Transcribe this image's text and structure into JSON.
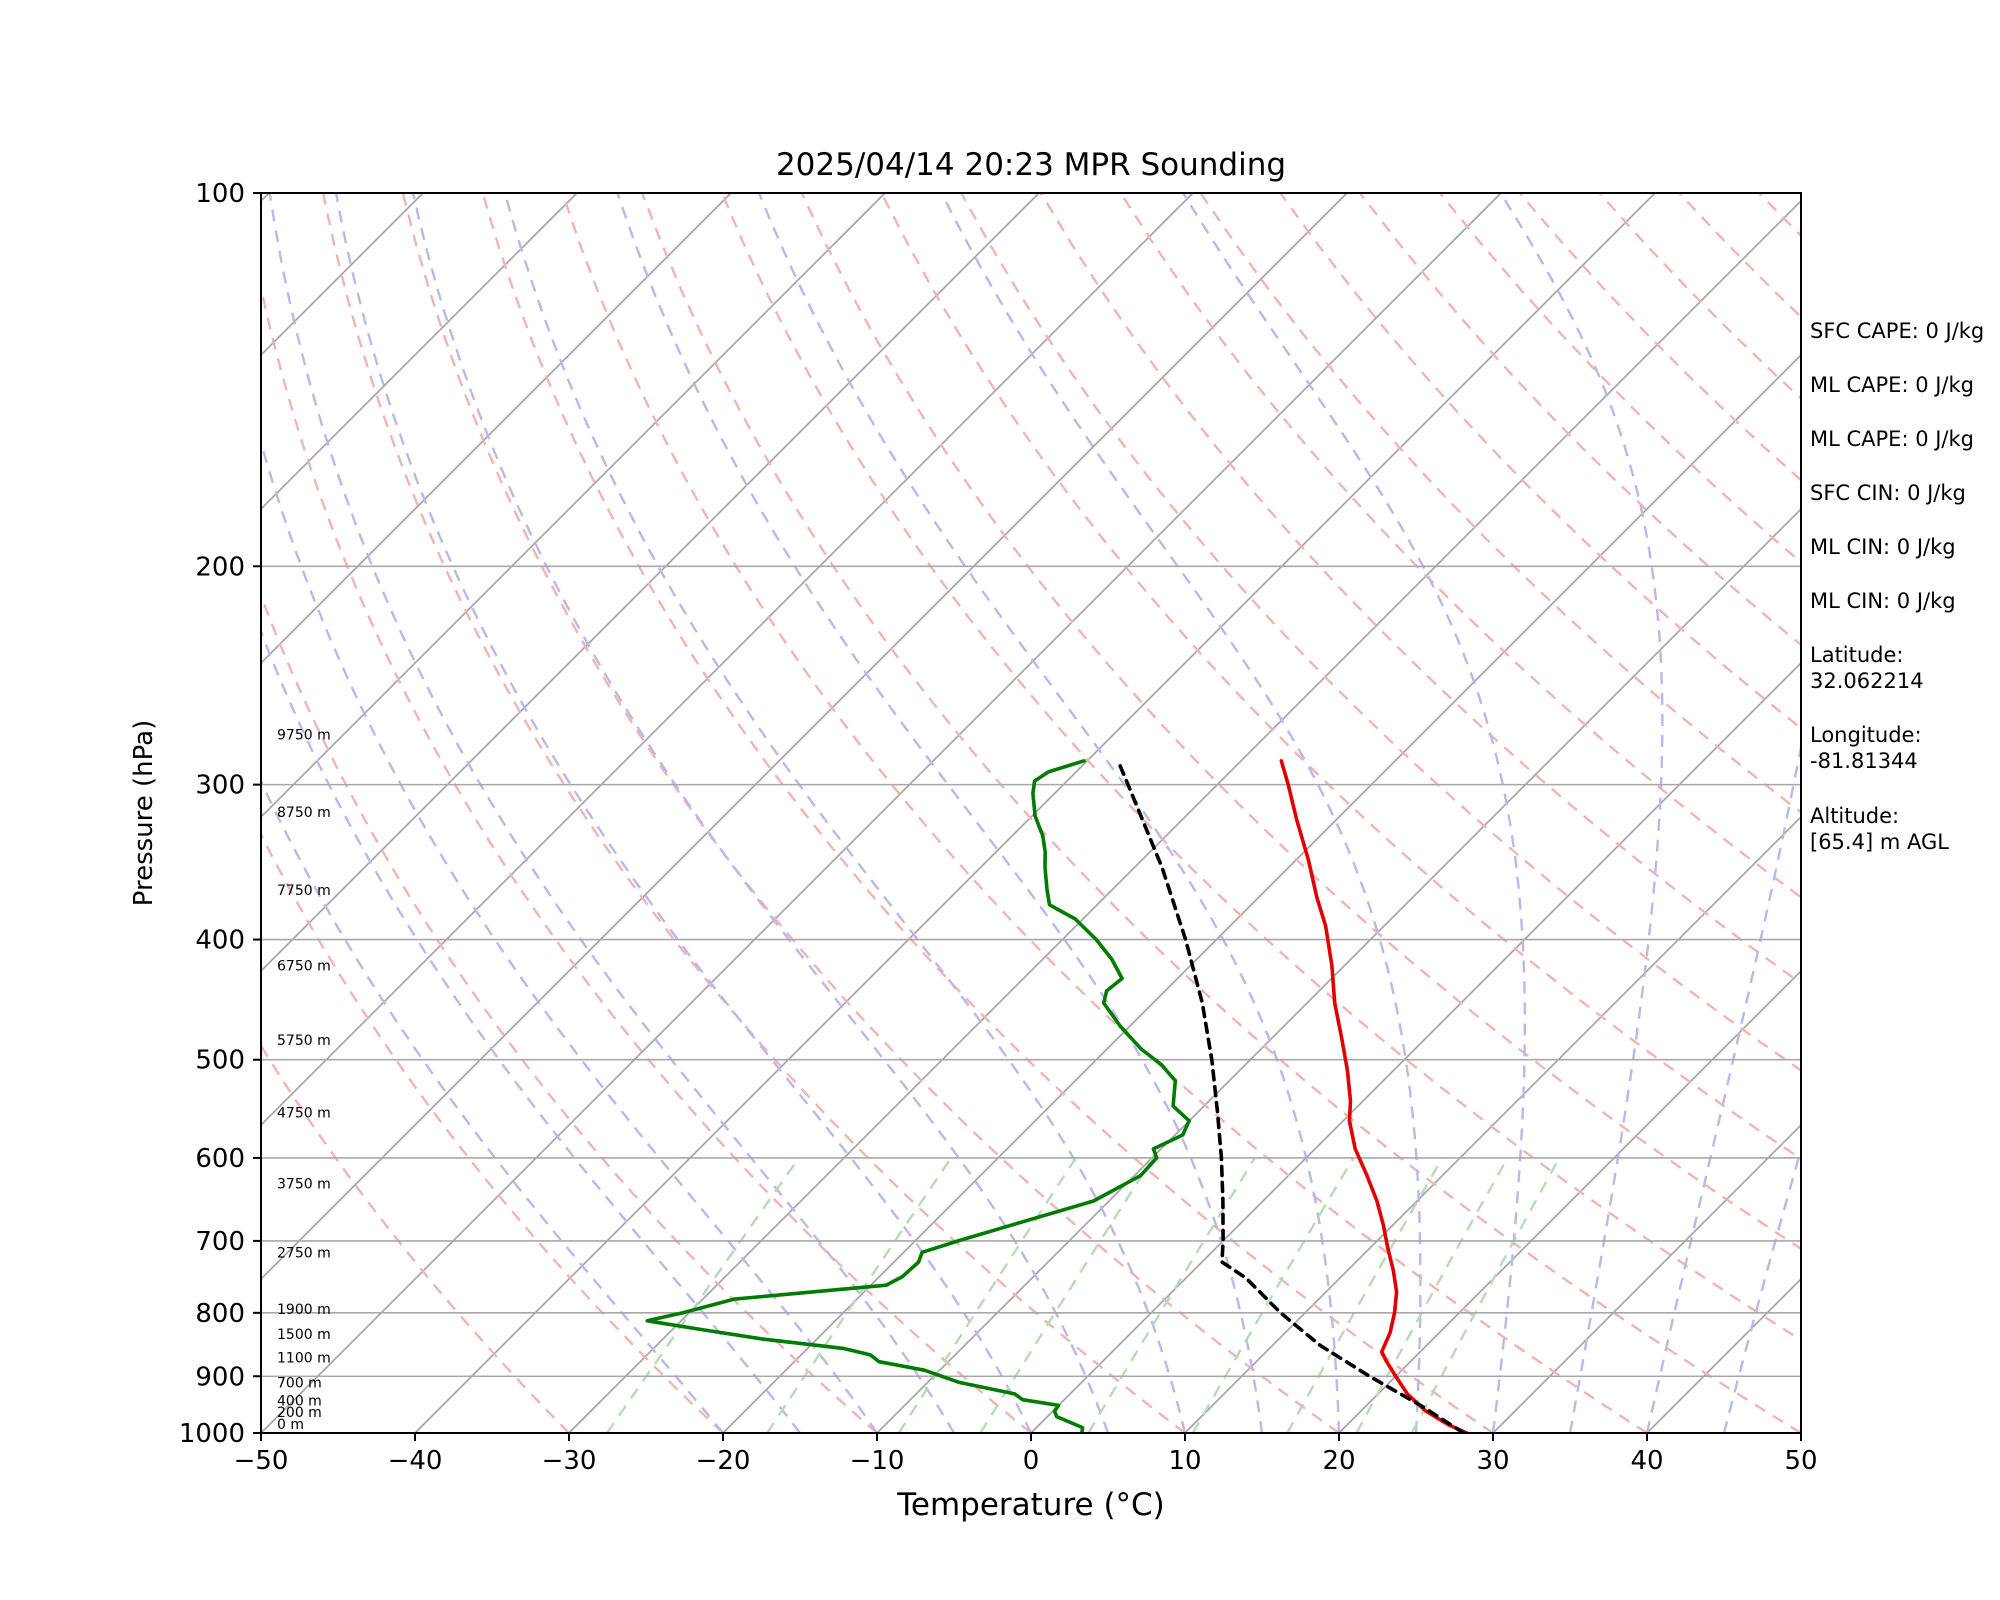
{
  "chart_data": {
    "type": "line",
    "title": "2025/04/14 20:23 MPR Sounding",
    "xlabel": "Temperature (°C)",
    "ylabel": "Pressure (hPa)",
    "xlim": [
      -50,
      50
    ],
    "ylim": [
      1000,
      100
    ],
    "y_scale": "log",
    "skew": "skew-T",
    "grid": true,
    "x_ticks": [
      "−50",
      "−40",
      "−30",
      "−20",
      "−10",
      "0",
      "10",
      "20",
      "30",
      "40",
      "50"
    ],
    "x_tick_values": [
      -50,
      -40,
      -30,
      -20,
      -10,
      0,
      10,
      20,
      30,
      40,
      50
    ],
    "y_ticks": [
      "100",
      "200",
      "300",
      "400",
      "500",
      "600",
      "700",
      "800",
      "900",
      "1000"
    ],
    "y_tick_values": [
      100,
      200,
      300,
      400,
      500,
      600,
      700,
      800,
      900,
      1000
    ],
    "height_labels": [
      {
        "text": "0 m",
        "p": 1000
      },
      {
        "text": "200 m",
        "p": 978
      },
      {
        "text": "400 m",
        "p": 957
      },
      {
        "text": "700 m",
        "p": 926
      },
      {
        "text": "1100 m",
        "p": 884
      },
      {
        "text": "1500 m",
        "p": 846
      },
      {
        "text": "1900 m",
        "p": 808
      },
      {
        "text": "2750 m",
        "p": 727
      },
      {
        "text": "3750 m",
        "p": 640
      },
      {
        "text": "4750 m",
        "p": 561
      },
      {
        "text": "5750 m",
        "p": 490
      },
      {
        "text": "6750 m",
        "p": 427
      },
      {
        "text": "7750 m",
        "p": 371
      },
      {
        "text": "8750 m",
        "p": 321
      },
      {
        "text": "9750 m",
        "p": 278
      }
    ],
    "series": [
      {
        "key": "temperature",
        "color": "#e00000",
        "style": "solid",
        "points": [
          {
            "p": 1000,
            "t": 28.3
          },
          {
            "p": 985,
            "t": 26.6
          },
          {
            "p": 960,
            "t": 24.2
          },
          {
            "p": 930,
            "t": 21.9
          },
          {
            "p": 900,
            "t": 20.0
          },
          {
            "p": 875,
            "t": 18.4
          },
          {
            "p": 860,
            "t": 17.5
          },
          {
            "p": 830,
            "t": 16.8
          },
          {
            "p": 800,
            "t": 15.8
          },
          {
            "p": 770,
            "t": 14.6
          },
          {
            "p": 740,
            "t": 13.0
          },
          {
            "p": 710,
            "t": 11.2
          },
          {
            "p": 680,
            "t": 9.4
          },
          {
            "p": 650,
            "t": 7.4
          },
          {
            "p": 620,
            "t": 5.1
          },
          {
            "p": 590,
            "t": 2.6
          },
          {
            "p": 560,
            "t": 0.4
          },
          {
            "p": 540,
            "t": -0.8
          },
          {
            "p": 510,
            "t": -3.0
          },
          {
            "p": 480,
            "t": -5.5
          },
          {
            "p": 450,
            "t": -8.2
          },
          {
            "p": 420,
            "t": -10.8
          },
          {
            "p": 390,
            "t": -13.8
          },
          {
            "p": 370,
            "t": -16.2
          },
          {
            "p": 345,
            "t": -19.2
          },
          {
            "p": 320,
            "t": -22.6
          },
          {
            "p": 300,
            "t": -25.4
          },
          {
            "p": 287,
            "t": -27.4
          }
        ]
      },
      {
        "key": "dewpoint",
        "color": "#007a00",
        "style": "solid",
        "points": [
          {
            "p": 1000,
            "t": 3.3
          },
          {
            "p": 990,
            "t": 3.0
          },
          {
            "p": 980,
            "t": 1.8
          },
          {
            "p": 970,
            "t": 0.6
          },
          {
            "p": 960,
            "t": 0.1
          },
          {
            "p": 950,
            "t": 0.0
          },
          {
            "p": 940,
            "t": -2.7
          },
          {
            "p": 930,
            "t": -3.6
          },
          {
            "p": 910,
            "t": -8.0
          },
          {
            "p": 890,
            "t": -11.0
          },
          {
            "p": 876,
            "t": -14.5
          },
          {
            "p": 865,
            "t": -15.5
          },
          {
            "p": 855,
            "t": -17.6
          },
          {
            "p": 840,
            "t": -23.5
          },
          {
            "p": 825,
            "t": -28.2
          },
          {
            "p": 812,
            "t": -32.2
          },
          {
            "p": 800,
            "t": -30.4
          },
          {
            "p": 780,
            "t": -28.0
          },
          {
            "p": 760,
            "t": -19.0
          },
          {
            "p": 748,
            "t": -18.5
          },
          {
            "p": 728,
            "t": -18.4
          },
          {
            "p": 715,
            "t": -18.8
          },
          {
            "p": 700,
            "t": -17.2
          },
          {
            "p": 680,
            "t": -14.8
          },
          {
            "p": 650,
            "t": -11.0
          },
          {
            "p": 620,
            "t": -9.6
          },
          {
            "p": 600,
            "t": -9.7
          },
          {
            "p": 590,
            "t": -10.5
          },
          {
            "p": 575,
            "t": -9.5
          },
          {
            "p": 560,
            "t": -10.0
          },
          {
            "p": 545,
            "t": -12.0
          },
          {
            "p": 520,
            "t": -13.5
          },
          {
            "p": 505,
            "t": -15.4
          },
          {
            "p": 490,
            "t": -17.8
          },
          {
            "p": 470,
            "t": -20.6
          },
          {
            "p": 450,
            "t": -23.2
          },
          {
            "p": 440,
            "t": -23.8
          },
          {
            "p": 430,
            "t": -23.6
          },
          {
            "p": 415,
            "t": -25.5
          },
          {
            "p": 400,
            "t": -27.8
          },
          {
            "p": 385,
            "t": -30.5
          },
          {
            "p": 375,
            "t": -33.1
          },
          {
            "p": 365,
            "t": -34.2
          },
          {
            "p": 350,
            "t": -35.8
          },
          {
            "p": 340,
            "t": -36.8
          },
          {
            "p": 330,
            "t": -38.0
          },
          {
            "p": 318,
            "t": -39.8
          },
          {
            "p": 305,
            "t": -41.4
          },
          {
            "p": 298,
            "t": -42.1
          },
          {
            "p": 293,
            "t": -41.8
          },
          {
            "p": 287,
            "t": -40.2
          }
        ]
      },
      {
        "key": "parcel",
        "color": "#000000",
        "style": "dashed",
        "points": [
          {
            "p": 1000,
            "t": 28.1
          },
          {
            "p": 950,
            "t": 23.5
          },
          {
            "p": 900,
            "t": 18.3
          },
          {
            "p": 850,
            "t": 13.1
          },
          {
            "p": 800,
            "t": 8.4
          },
          {
            "p": 750,
            "t": 3.9
          },
          {
            "p": 728,
            "t": 1.3
          },
          {
            "p": 700,
            "t": 0.0
          },
          {
            "p": 650,
            "t": -2.6
          },
          {
            "p": 600,
            "t": -5.5
          },
          {
            "p": 550,
            "t": -8.8
          },
          {
            "p": 500,
            "t": -12.5
          },
          {
            "p": 450,
            "t": -16.8
          },
          {
            "p": 400,
            "t": -22.0
          },
          {
            "p": 350,
            "t": -28.2
          },
          {
            "p": 300,
            "t": -35.8
          },
          {
            "p": 287,
            "t": -38.0
          }
        ]
      }
    ],
    "reference_lines": {
      "isotherm_color": "#a0a0a0",
      "dry_adiabat_color": "#f4b3b3",
      "moist_adiabat_color": "#b8b8f0",
      "mixing_ratio_color": "#b5dcb5"
    }
  },
  "stats": [
    "SFC CAPE: 0 J/kg",
    "ML CAPE: 0 J/kg",
    "ML CAPE: 0 J/kg",
    "SFC CIN: 0 J/kg",
    "ML CIN: 0 J/kg",
    "ML CIN: 0 J/kg",
    "Latitude:\n32.062214",
    "Longitude:\n-81.81344",
    "Altitude:\n[65.4] m AGL"
  ]
}
